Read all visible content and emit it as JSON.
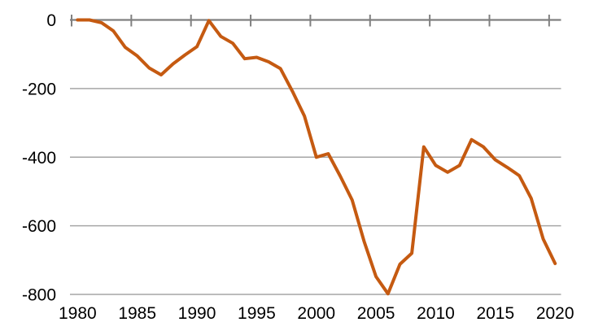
{
  "chart_data": {
    "type": "line",
    "title": "",
    "xlabel": "",
    "ylabel": "",
    "x": [
      1980,
      1981,
      1982,
      1983,
      1984,
      1985,
      1986,
      1987,
      1988,
      1989,
      1990,
      1991,
      1992,
      1993,
      1994,
      1995,
      1996,
      1997,
      1998,
      1999,
      2000,
      2001,
      2002,
      2003,
      2004,
      2005,
      2006,
      2007,
      2008,
      2009,
      2010,
      2011,
      2012,
      2013,
      2014,
      2015,
      2016,
      2017,
      2018,
      2019,
      2020
    ],
    "series": [
      {
        "name": "balance",
        "color": "#C55A11",
        "values": [
          0,
          0,
          -8,
          -32,
          -80,
          -105,
          -140,
          -160,
          -128,
          -102,
          -78,
          -2,
          -48,
          -68,
          -113,
          -109,
          -122,
          -142,
          -208,
          -280,
          -400,
          -390,
          -455,
          -525,
          -645,
          -748,
          -798,
          -712,
          -680,
          -370,
          -424,
          -444,
          -424,
          -349,
          -370,
          -408,
          -430,
          -454,
          -520,
          -638,
          -710
        ]
      }
    ],
    "ylim": [
      -800,
      0
    ],
    "yticks": [
      0,
      -200,
      -400,
      -600,
      -800
    ],
    "ytick_labels": [
      "0",
      "-200",
      "-400",
      "-600",
      "-800"
    ],
    "xticks": [
      1980,
      1985,
      1990,
      1995,
      2000,
      2005,
      2010,
      2015,
      2020
    ],
    "xtick_labels": [
      "1980",
      "1985",
      "1990",
      "1995",
      "2000",
      "2005",
      "2010",
      "2015",
      "2020"
    ],
    "grid": true,
    "legend": false,
    "grid_color": "#A6A6A6",
    "axis_color": "#808080",
    "text_color": "#000000",
    "background_color": "#FFFFFF"
  }
}
